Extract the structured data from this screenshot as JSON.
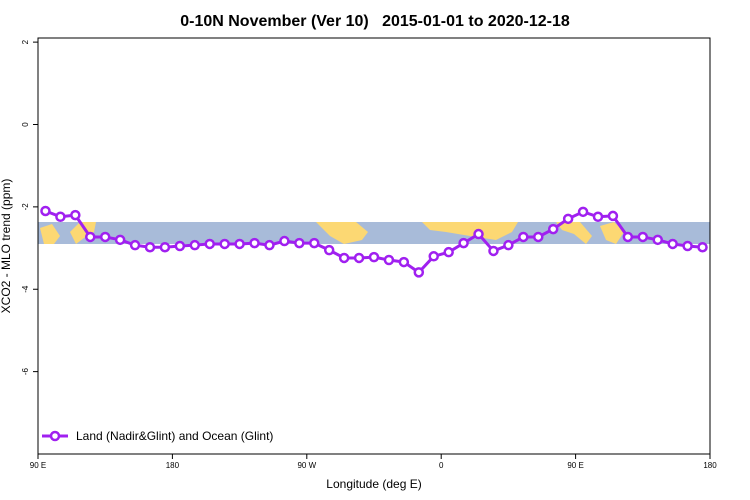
{
  "chart_data": {
    "type": "line",
    "title": "0-10N November (Ver 10)   2015-01-01 to 2020-12-18",
    "x_label": "Longitude (deg E)",
    "y_label": "XCO2 - MLO trend (ppm)",
    "x": [
      95,
      105,
      115,
      125,
      135,
      145,
      155,
      165,
      175,
      185,
      195,
      205,
      215,
      225,
      235,
      245,
      255,
      265,
      275,
      285,
      295,
      305,
      315,
      325,
      335,
      345,
      355,
      365,
      375,
      385,
      395,
      405,
      415,
      425,
      435,
      445,
      455,
      465,
      475,
      485,
      495,
      505,
      515,
      525,
      535
    ],
    "series": [
      {
        "name": "Land (Nadir&Glint) and Ocean (Glint)",
        "color": "#a020f0",
        "values": [
          -2.1,
          -2.24,
          -2.2,
          -2.73,
          -2.73,
          -2.8,
          -2.93,
          -2.98,
          -2.98,
          -2.95,
          -2.93,
          -2.9,
          -2.9,
          -2.9,
          -2.88,
          -2.93,
          -2.83,
          -2.88,
          -2.88,
          -3.05,
          -3.24,
          -3.24,
          -3.22,
          -3.29,
          -3.34,
          -3.59,
          -3.2,
          -3.1,
          -2.88,
          -2.66,
          -3.07,
          -2.93,
          -2.73,
          -2.73,
          -2.54,
          -2.29,
          -2.12,
          -2.24,
          -2.22,
          -2.73,
          -2.73,
          -2.8,
          -2.9,
          -2.95,
          -2.98
        ]
      }
    ],
    "xlim": [
      90,
      540
    ],
    "xticks": [
      {
        "value": 90,
        "label": "90 E"
      },
      {
        "value": 180,
        "label": "180"
      },
      {
        "value": 270,
        "label": "90 W"
      },
      {
        "value": 360,
        "label": "0"
      },
      {
        "value": 450,
        "label": "90 E"
      },
      {
        "value": 540,
        "label": "180"
      }
    ],
    "ylim": [
      -8,
      2.1
    ],
    "yticks": [
      2,
      0,
      -2,
      -4,
      -6
    ],
    "legend": "bottom-left"
  }
}
